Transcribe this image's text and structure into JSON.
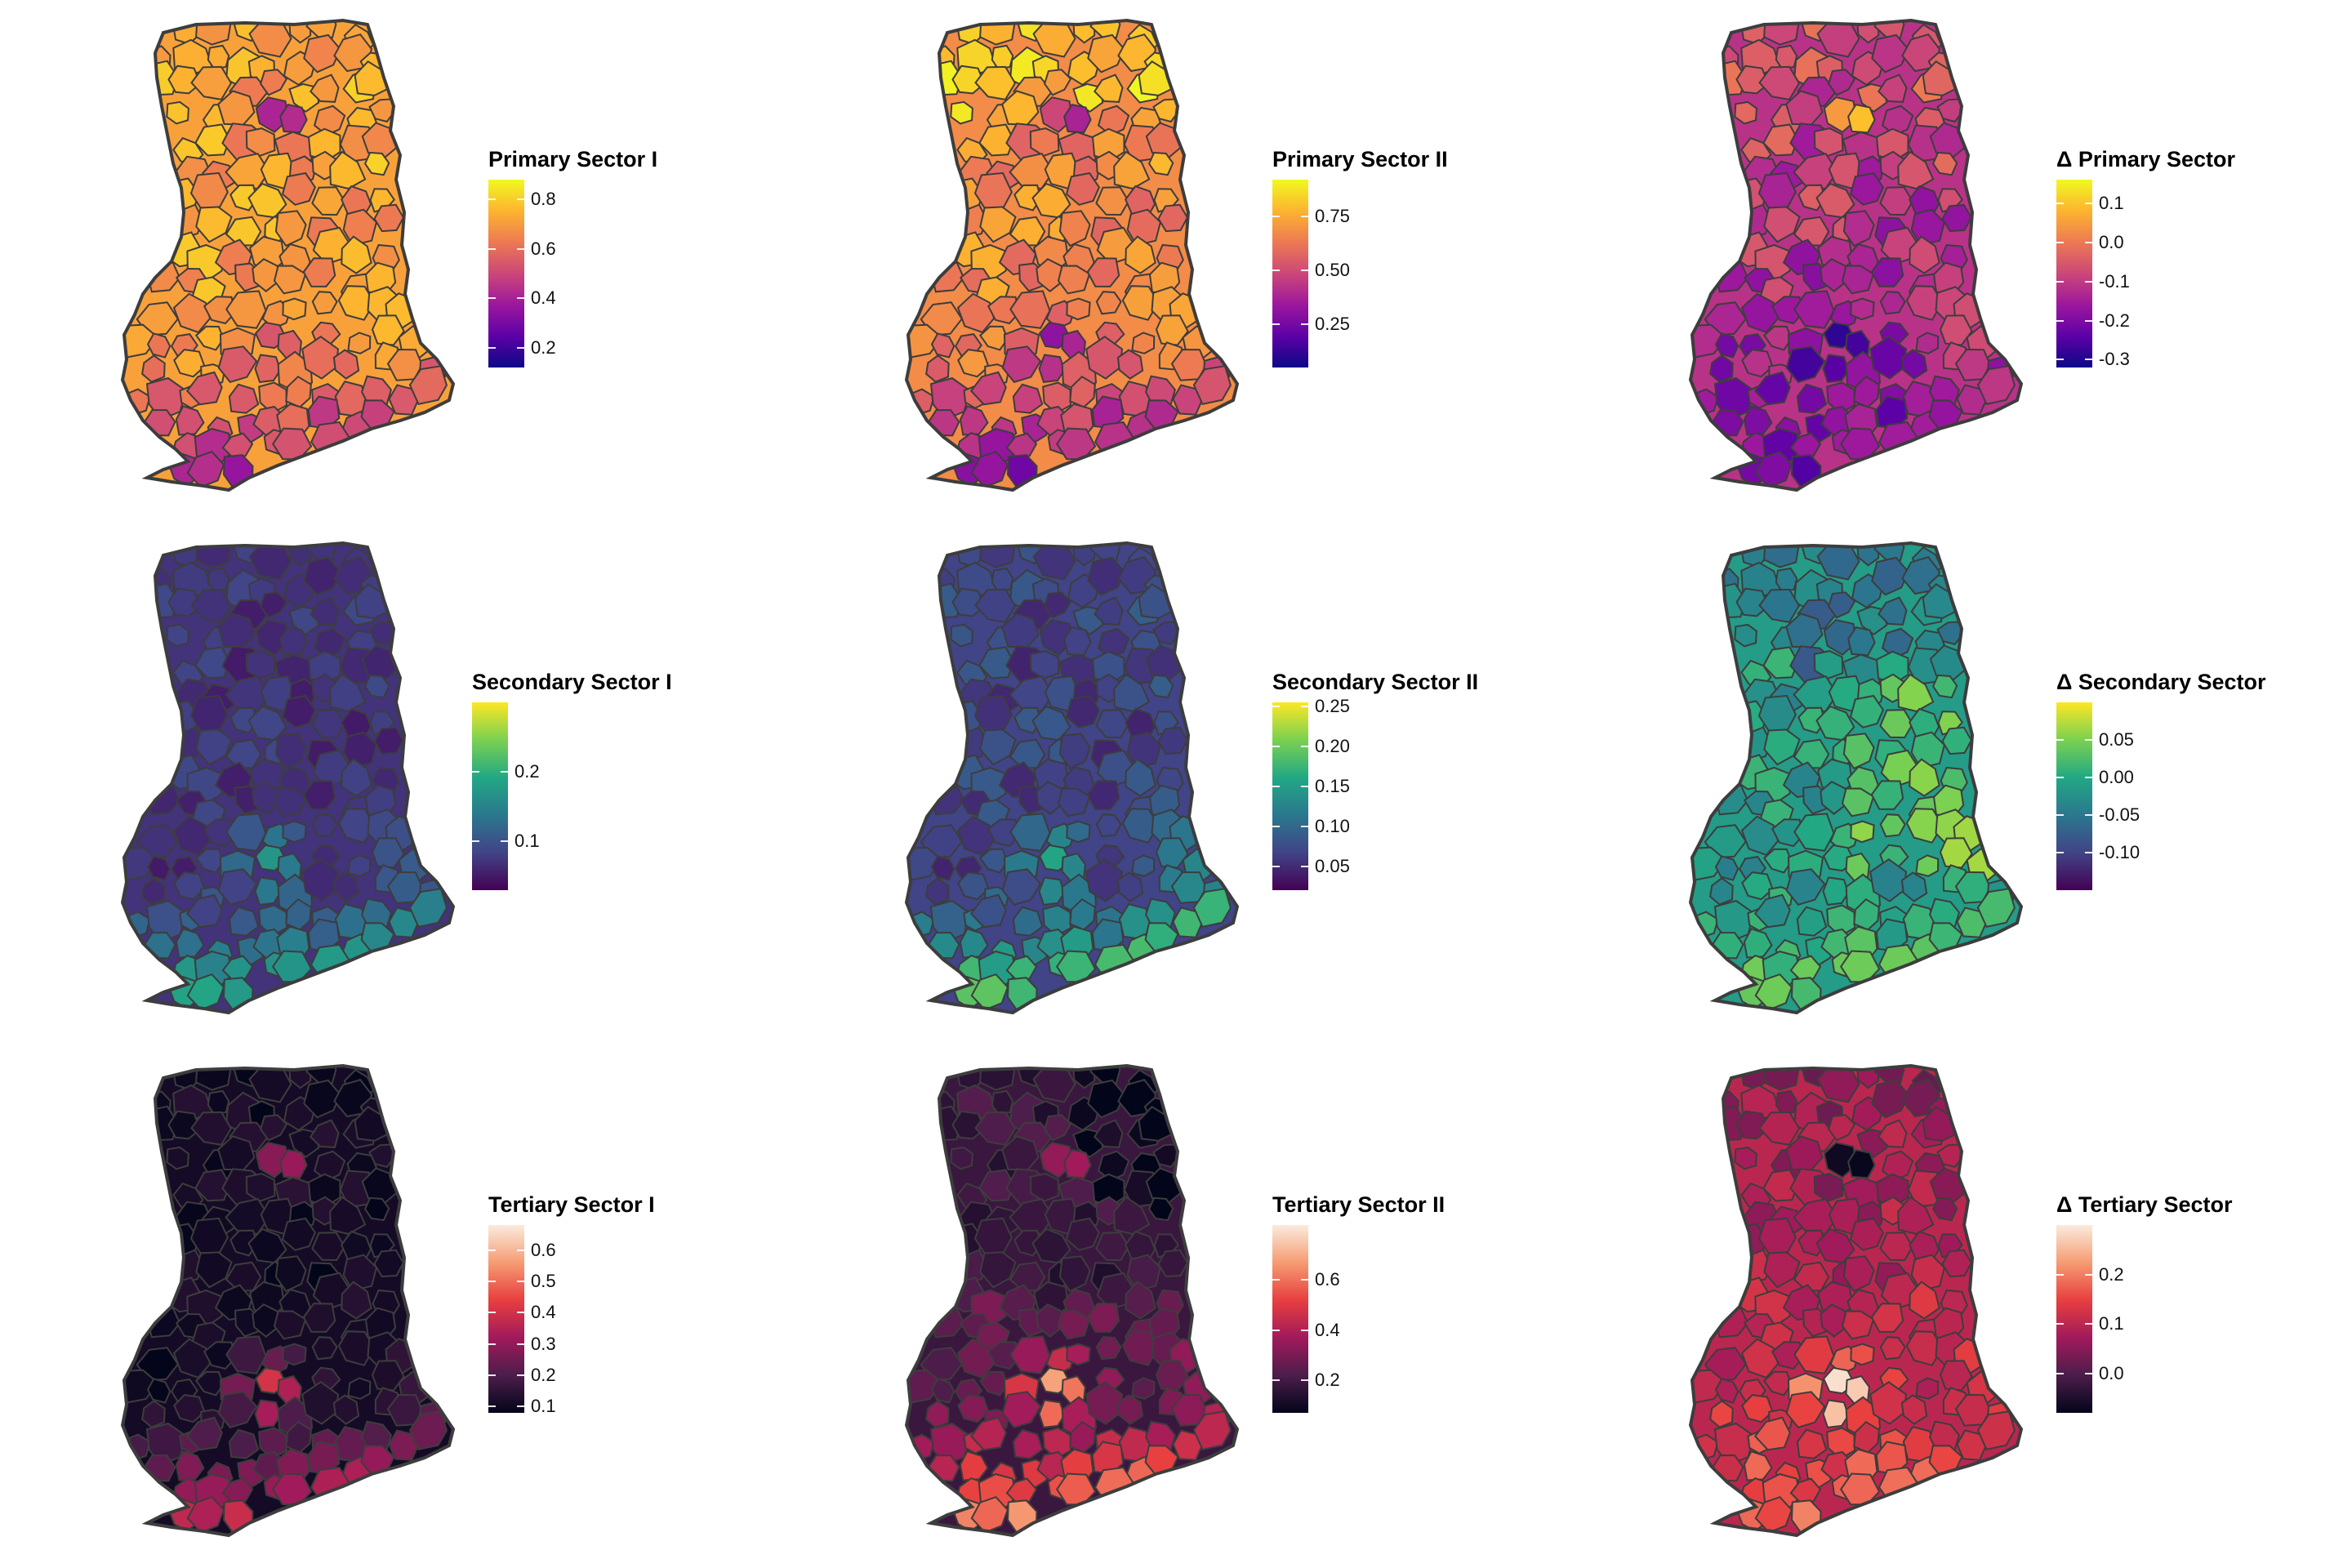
{
  "colormaps": {
    "plasma": [
      "#0d0887",
      "#5c01a6",
      "#9c179e",
      "#cc4778",
      "#ed7953",
      "#fdb42f",
      "#f0f921"
    ],
    "viridis": [
      "#440154",
      "#414487",
      "#2a788e",
      "#22a884",
      "#7ad151",
      "#fde725"
    ],
    "rocket": [
      "#03051a",
      "#4c1d4b",
      "#a11a5b",
      "#e83f3f",
      "#f69c73",
      "#faebdd"
    ]
  },
  "border_color": "#3d3d3d",
  "panels": [
    {
      "legend_title": "Primary Sector I",
      "cmap": "plasma",
      "range": [
        0.12,
        0.88
      ],
      "ticks": [
        {
          "v": 0.8,
          "label": "0.8"
        },
        {
          "v": 0.6,
          "label": "0.6"
        },
        {
          "v": 0.4,
          "label": "0.4"
        },
        {
          "v": 0.2,
          "label": "0.2"
        }
      ],
      "palette_profile": "p1"
    },
    {
      "legend_title": "Primary Sector II",
      "cmap": "plasma",
      "range": [
        0.05,
        0.92
      ],
      "ticks": [
        {
          "v": 0.75,
          "label": "0.75"
        },
        {
          "v": 0.5,
          "label": "0.50"
        },
        {
          "v": 0.25,
          "label": "0.25"
        }
      ],
      "palette_profile": "p2"
    },
    {
      "legend_title": "Δ Primary Sector",
      "cmap": "plasma",
      "range": [
        -0.32,
        0.16
      ],
      "ticks": [
        {
          "v": 0.1,
          "label": "0.1"
        },
        {
          "v": 0.0,
          "label": "0.0"
        },
        {
          "v": -0.1,
          "label": "-0.1"
        },
        {
          "v": -0.2,
          "label": "-0.2"
        },
        {
          "v": -0.3,
          "label": "-0.3"
        }
      ],
      "palette_profile": "dp"
    },
    {
      "legend_title": "Secondary Sector I",
      "cmap": "viridis",
      "range": [
        0.03,
        0.3
      ],
      "ticks": [
        {
          "v": 0.2,
          "label": "0.2"
        },
        {
          "v": 0.1,
          "label": "0.1"
        }
      ],
      "palette_profile": "s1"
    },
    {
      "legend_title": "Secondary Sector II",
      "cmap": "viridis",
      "range": [
        0.02,
        0.255
      ],
      "ticks": [
        {
          "v": 0.25,
          "label": "0.25"
        },
        {
          "v": 0.2,
          "label": "0.20"
        },
        {
          "v": 0.15,
          "label": "0.15"
        },
        {
          "v": 0.1,
          "label": "0.10"
        },
        {
          "v": 0.05,
          "label": "0.05"
        }
      ],
      "palette_profile": "s2"
    },
    {
      "legend_title": "Δ Secondary Sector",
      "cmap": "viridis",
      "range": [
        -0.15,
        0.1
      ],
      "ticks": [
        {
          "v": 0.05,
          "label": "0.05"
        },
        {
          "v": 0.0,
          "label": "0.00"
        },
        {
          "v": -0.05,
          "label": "-0.05"
        },
        {
          "v": -0.1,
          "label": "-0.10"
        }
      ],
      "palette_profile": "ds"
    },
    {
      "legend_title": "Tertiary Sector I",
      "cmap": "rocket",
      "range": [
        0.08,
        0.68
      ],
      "ticks": [
        {
          "v": 0.6,
          "label": "0.6"
        },
        {
          "v": 0.5,
          "label": "0.5"
        },
        {
          "v": 0.4,
          "label": "0.4"
        },
        {
          "v": 0.3,
          "label": "0.3"
        },
        {
          "v": 0.2,
          "label": "0.2"
        },
        {
          "v": 0.1,
          "label": "0.1"
        }
      ],
      "palette_profile": "t1"
    },
    {
      "legend_title": "Tertiary Sector II",
      "cmap": "rocket",
      "range": [
        0.07,
        0.82
      ],
      "ticks": [
        {
          "v": 0.6,
          "label": "0.6"
        },
        {
          "v": 0.4,
          "label": "0.4"
        },
        {
          "v": 0.2,
          "label": "0.2"
        }
      ],
      "palette_profile": "t2"
    },
    {
      "legend_title": "Δ Tertiary Sector",
      "cmap": "rocket",
      "range": [
        -0.08,
        0.3
      ],
      "ticks": [
        {
          "v": 0.2,
          "label": "0.2"
        },
        {
          "v": 0.1,
          "label": "0.1"
        },
        {
          "v": 0.0,
          "label": "0.0"
        }
      ],
      "palette_profile": "dt"
    }
  ]
}
